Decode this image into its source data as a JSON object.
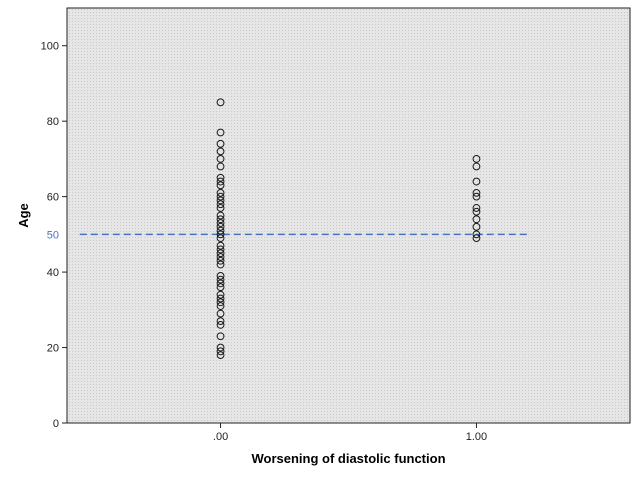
{
  "chart_data": {
    "type": "scatter",
    "title": "",
    "xlabel": "Worsening of diastolic function",
    "ylabel": "Age",
    "x_categories": [
      ".00",
      "1.00"
    ],
    "xlim": [
      -0.6,
      1.6
    ],
    "ylim": [
      0,
      110
    ],
    "y_ticks": [
      "0",
      "20",
      "40",
      "60",
      "80",
      "100"
    ],
    "grid": false,
    "legend": "none",
    "background_color": "#e4e4e4",
    "marker": "open-circle",
    "reference_line": {
      "y": 50,
      "label": "50",
      "style": "dashed",
      "color": "#4a72c4",
      "x_range": [
        -0.55,
        1.2
      ]
    },
    "points": [
      {
        "x": 0,
        "y": 85
      },
      {
        "x": 0,
        "y": 77
      },
      {
        "x": 0,
        "y": 74
      },
      {
        "x": 0,
        "y": 72
      },
      {
        "x": 0,
        "y": 70
      },
      {
        "x": 0,
        "y": 68
      },
      {
        "x": 0,
        "y": 65
      },
      {
        "x": 0,
        "y": 64
      },
      {
        "x": 0,
        "y": 63
      },
      {
        "x": 0,
        "y": 61
      },
      {
        "x": 0,
        "y": 60
      },
      {
        "x": 0,
        "y": 59
      },
      {
        "x": 0,
        "y": 58
      },
      {
        "x": 0,
        "y": 57
      },
      {
        "x": 0,
        "y": 55
      },
      {
        "x": 0,
        "y": 54
      },
      {
        "x": 0,
        "y": 53
      },
      {
        "x": 0,
        "y": 52
      },
      {
        "x": 0,
        "y": 51
      },
      {
        "x": 0,
        "y": 50
      },
      {
        "x": 0,
        "y": 49
      },
      {
        "x": 0,
        "y": 47
      },
      {
        "x": 0,
        "y": 46
      },
      {
        "x": 0,
        "y": 45
      },
      {
        "x": 0,
        "y": 44
      },
      {
        "x": 0,
        "y": 43
      },
      {
        "x": 0,
        "y": 42
      },
      {
        "x": 0,
        "y": 39
      },
      {
        "x": 0,
        "y": 38
      },
      {
        "x": 0,
        "y": 37
      },
      {
        "x": 0,
        "y": 36
      },
      {
        "x": 0,
        "y": 34
      },
      {
        "x": 0,
        "y": 33
      },
      {
        "x": 0,
        "y": 32
      },
      {
        "x": 0,
        "y": 31
      },
      {
        "x": 0,
        "y": 29
      },
      {
        "x": 0,
        "y": 27
      },
      {
        "x": 0,
        "y": 26
      },
      {
        "x": 0,
        "y": 23
      },
      {
        "x": 0,
        "y": 20
      },
      {
        "x": 0,
        "y": 19
      },
      {
        "x": 0,
        "y": 18
      },
      {
        "x": 1,
        "y": 70
      },
      {
        "x": 1,
        "y": 68
      },
      {
        "x": 1,
        "y": 64
      },
      {
        "x": 1,
        "y": 61
      },
      {
        "x": 1,
        "y": 60
      },
      {
        "x": 1,
        "y": 57
      },
      {
        "x": 1,
        "y": 56
      },
      {
        "x": 1,
        "y": 54
      },
      {
        "x": 1,
        "y": 52
      },
      {
        "x": 1,
        "y": 50
      },
      {
        "x": 1,
        "y": 49
      }
    ]
  }
}
